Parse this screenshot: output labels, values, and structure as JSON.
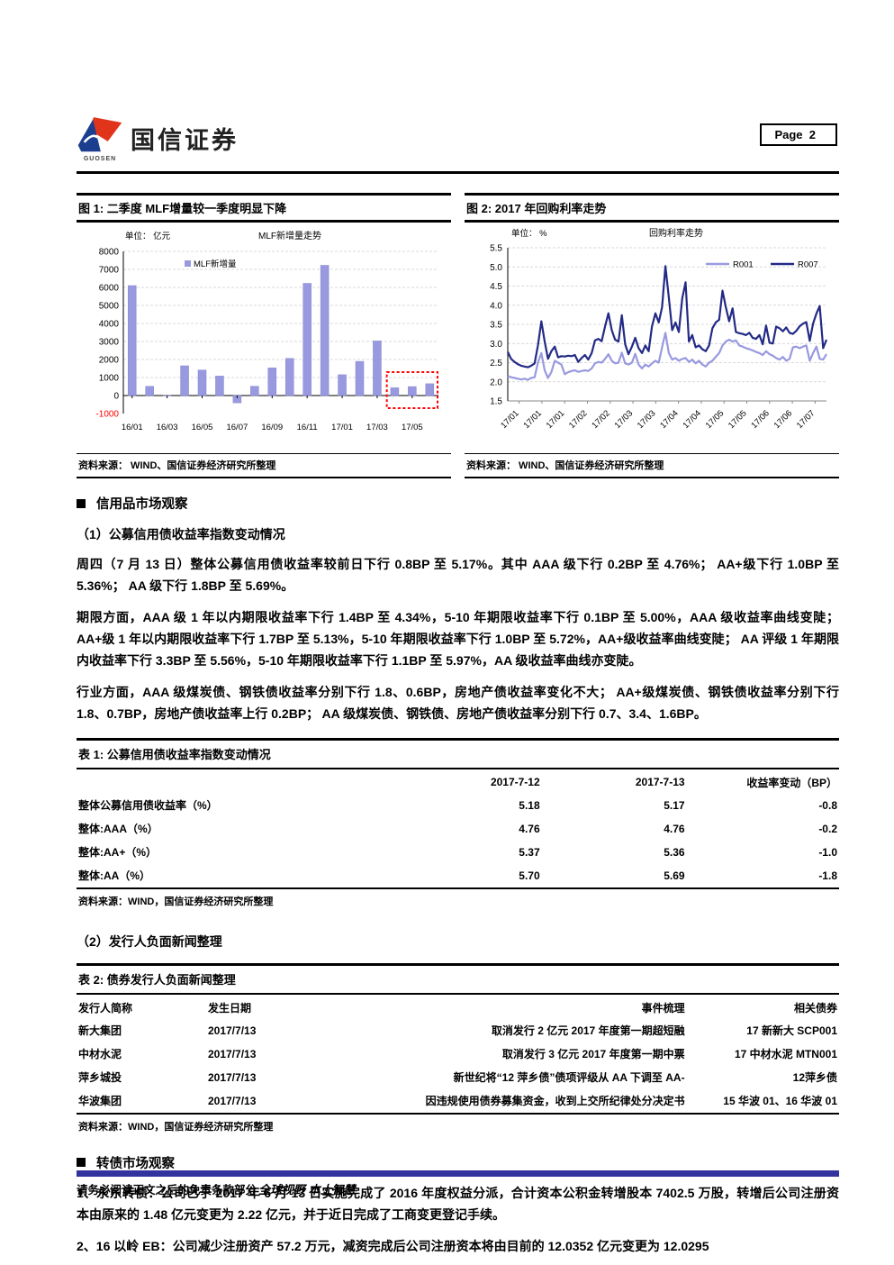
{
  "header": {
    "brand": "国信证券",
    "brand_sub": "GUOSEN",
    "page_label": "Page",
    "page_number": "2"
  },
  "figures": {
    "fig1": {
      "title": "图 1: 二季度 MLF增量较一季度明显下降",
      "source": "资料来源： WIND、国信证券经济研究所整理"
    },
    "fig2": {
      "title": "图 2: 2017 年回购利率走势",
      "source": "资料来源： WIND、国信证券经济研究所整理"
    }
  },
  "chart_data": [
    {
      "type": "bar",
      "title": "MLF新增量走势",
      "unit": "单位： 亿元",
      "legend": [
        "MLF新增量"
      ],
      "categories": [
        "16/01",
        "16/02",
        "16/03",
        "16/04",
        "16/05",
        "16/06",
        "16/07",
        "16/08",
        "16/09",
        "16/10",
        "16/11",
        "16/12",
        "17/01",
        "17/02",
        "17/03",
        "17/04",
        "17/05",
        "17/06"
      ],
      "values": [
        6100,
        510,
        0,
        1650,
        1415,
        1080,
        -405,
        515,
        1535,
        2060,
        6225,
        7225,
        1155,
        1895,
        3030,
        430,
        495,
        655
      ],
      "ylim": [
        -1000,
        8000
      ],
      "ytick_step": 1000,
      "x_tick_every": 2,
      "bar_color": "#9999E0",
      "grid": true,
      "negative_tick_color": "#FF0000",
      "highlight_box": {
        "from_index": 15,
        "to_index": 17,
        "value_top": 1300,
        "value_bottom": -700,
        "color": "#FF0000"
      }
    },
    {
      "type": "line",
      "title": "回购利率走势",
      "unit": "单位： %",
      "ylim": [
        1.5,
        5.5
      ],
      "ytick_step": 0.5,
      "grid": true,
      "legend_position": "top-right",
      "x_labels": [
        "17/01",
        "17/01",
        "17/01",
        "17/02",
        "17/02",
        "17/03",
        "17/03",
        "17/04",
        "17/04",
        "17/05",
        "17/05",
        "17/06",
        "17/06",
        "17/07"
      ],
      "series": [
        {
          "name": "R001",
          "color": "#9999E0",
          "values": [
            2.15,
            2.12,
            2.1,
            2.08,
            2.06,
            2.08,
            2.05,
            2.1,
            2.12,
            2.5,
            2.75,
            2.3,
            2.1,
            2.25,
            2.55,
            2.5,
            2.45,
            2.2,
            2.25,
            2.28,
            2.3,
            2.26,
            2.28,
            2.3,
            2.28,
            2.35,
            2.48,
            2.52,
            2.5,
            2.6,
            2.72,
            2.55,
            2.48,
            2.5,
            2.76,
            2.48,
            2.45,
            2.5,
            2.73,
            2.45,
            2.35,
            2.45,
            2.4,
            2.48,
            2.55,
            2.5,
            2.9,
            3.28,
            2.75,
            2.58,
            2.62,
            2.55,
            2.6,
            2.62,
            2.52,
            2.58,
            2.48,
            2.55,
            2.45,
            2.4,
            2.5,
            2.55,
            2.65,
            2.75,
            2.95,
            3.05,
            3.1,
            3.05,
            3.08,
            2.95,
            2.92,
            2.88,
            2.85,
            2.82,
            2.78,
            2.75,
            2.7,
            2.8,
            2.72,
            2.68,
            2.62,
            2.58,
            2.65,
            2.55,
            2.6,
            2.9,
            2.92,
            2.88,
            2.92,
            2.95,
            2.55,
            2.75,
            2.92,
            2.6,
            2.58,
            2.72
          ]
        },
        {
          "name": "R007",
          "color": "#232A85",
          "values": [
            2.78,
            2.6,
            2.52,
            2.46,
            2.42,
            2.4,
            2.38,
            2.42,
            2.48,
            2.95,
            3.58,
            3.05,
            2.6,
            2.8,
            2.92,
            2.64,
            2.67,
            2.66,
            2.68,
            2.67,
            2.7,
            2.52,
            2.62,
            2.7,
            2.58,
            2.75,
            3.08,
            3.12,
            3.06,
            3.45,
            3.79,
            3.35,
            3.1,
            3.05,
            3.74,
            2.98,
            2.72,
            2.92,
            3.15,
            2.88,
            2.75,
            2.95,
            2.8,
            3.45,
            3.79,
            3.55,
            3.95,
            5.02,
            4.2,
            3.35,
            3.55,
            3.3,
            4.18,
            4.6,
            3.05,
            3.22,
            2.9,
            2.95,
            2.85,
            2.8,
            2.95,
            3.4,
            3.55,
            3.62,
            4.38,
            3.95,
            3.58,
            3.92,
            3.3,
            3.27,
            3.25,
            3.22,
            3.28,
            3.15,
            3.12,
            3.22,
            2.98,
            3.47,
            3.02,
            3.0,
            3.44,
            3.4,
            3.32,
            3.42,
            3.28,
            3.25,
            3.33,
            3.45,
            3.52,
            3.56,
            3.07,
            3.52,
            3.78,
            3.98,
            2.88,
            3.1
          ]
        }
      ]
    }
  ],
  "sections": {
    "credit_heading": "信用品市场观察",
    "sub1": "（1）公募信用债收益率指数变动情况",
    "p1": "周四（7 月 13 日）整体公募信用债收益率较前日下行 0.8BP 至 5.17%。其中 AAA 级下行 0.2BP 至 4.76%； AA+级下行 1.0BP 至 5.36%； AA 级下行 1.8BP 至 5.69%。",
    "p2": "期限方面，AAA 级 1 年以内期限收益率下行 1.4BP 至 4.34%，5-10 年期限收益率下行 0.1BP 至 5.00%，AAA 级收益率曲线变陡； AA+级 1 年以内期限收益率下行 1.7BP 至 5.13%，5-10 年期限收益率下行 1.0BP 至 5.72%，AA+级收益率曲线变陡； AA 评级 1 年期限内收益率下行 3.3BP 至 5.56%，5-10 年期限收益率下行 1.1BP 至 5.97%，AA 级收益率曲线亦变陡。",
    "p3": "行业方面，AAA 级煤炭债、钢铁债收益率分别下行 1.8、0.6BP，房地产债收益率变化不大； AA+级煤炭债、钢铁债收益率分别下行 1.8、0.7BP，房地产债收益率上行 0.2BP； AA 级煤炭债、钢铁债、房地产债收益率分别下行 0.7、3.4、1.6BP。",
    "sub2": "（2）发行人负面新闻整理",
    "convert_heading": "转债市场观察",
    "p4": "1、永东转债：公司已于 2017 年 6 月 13 日实施完成了 2016 年度权益分派，合计资本公积金转增股本 7402.5 万股，转增后公司注册资本由原来的 1.48 亿元变更为 2.22 亿元，并于近日完成了工商变更登记手续。",
    "p5": "2、16 以岭 EB：公司减少注册资产 57.2 万元，减资完成后公司注册资本将由目前的 12.0352 亿元变更为 12.0295"
  },
  "tables": {
    "t1": {
      "title": "表 1: 公募信用债收益率指数变动情况",
      "columns": [
        "",
        "2017-7-12",
        "2017-7-13",
        "收益率变动（BP）"
      ],
      "rows": [
        [
          "整体公募信用债收益率（%）",
          "5.18",
          "5.17",
          "-0.8"
        ],
        [
          "整体:AAA（%）",
          "4.76",
          "4.76",
          "-0.2"
        ],
        [
          "整体:AA+（%）",
          "5.37",
          "5.36",
          "-1.0"
        ],
        [
          "整体:AA（%）",
          "5.70",
          "5.69",
          "-1.8"
        ]
      ],
      "source": "资料来源：WIND，国信证券经济研究所整理"
    },
    "t2": {
      "title": "表 2: 债券发行人负面新闻整理",
      "columns": [
        "发行人简称",
        "发生日期",
        "事件梳理",
        "相关债券"
      ],
      "rows": [
        [
          "新大集团",
          "2017/7/13",
          "取消发行 2 亿元 2017 年度第一期超短融",
          "17 新新大 SCP001"
        ],
        [
          "中材水泥",
          "2017/7/13",
          "取消发行 3 亿元 2017 年度第一期中票",
          "17 中材水泥 MTN001"
        ],
        [
          "萍乡城投",
          "2017/7/13",
          "新世纪将“12 萍乡债”债项评级从 AA 下调至 AA-",
          "12萍乡债"
        ],
        [
          "华波集团",
          "2017/7/13",
          "因违规使用债券募集资金，收到上交所纪律处分决定书",
          "15 华波 01、16 华波 01"
        ]
      ],
      "source": "资料来源：WIND，国信证券经济研究所整理"
    }
  },
  "footer": {
    "disclaimer": "请务必阅读正文之后的免责条款部分",
    "slogan": "全球视野 本土智慧"
  },
  "colors": {
    "footer_bar": "#3333A0",
    "logo_blue": "#1B3E8F",
    "logo_red": "#E0341B",
    "bar": "#9999E0",
    "r007": "#232A85",
    "highlight": "#FF0000"
  }
}
